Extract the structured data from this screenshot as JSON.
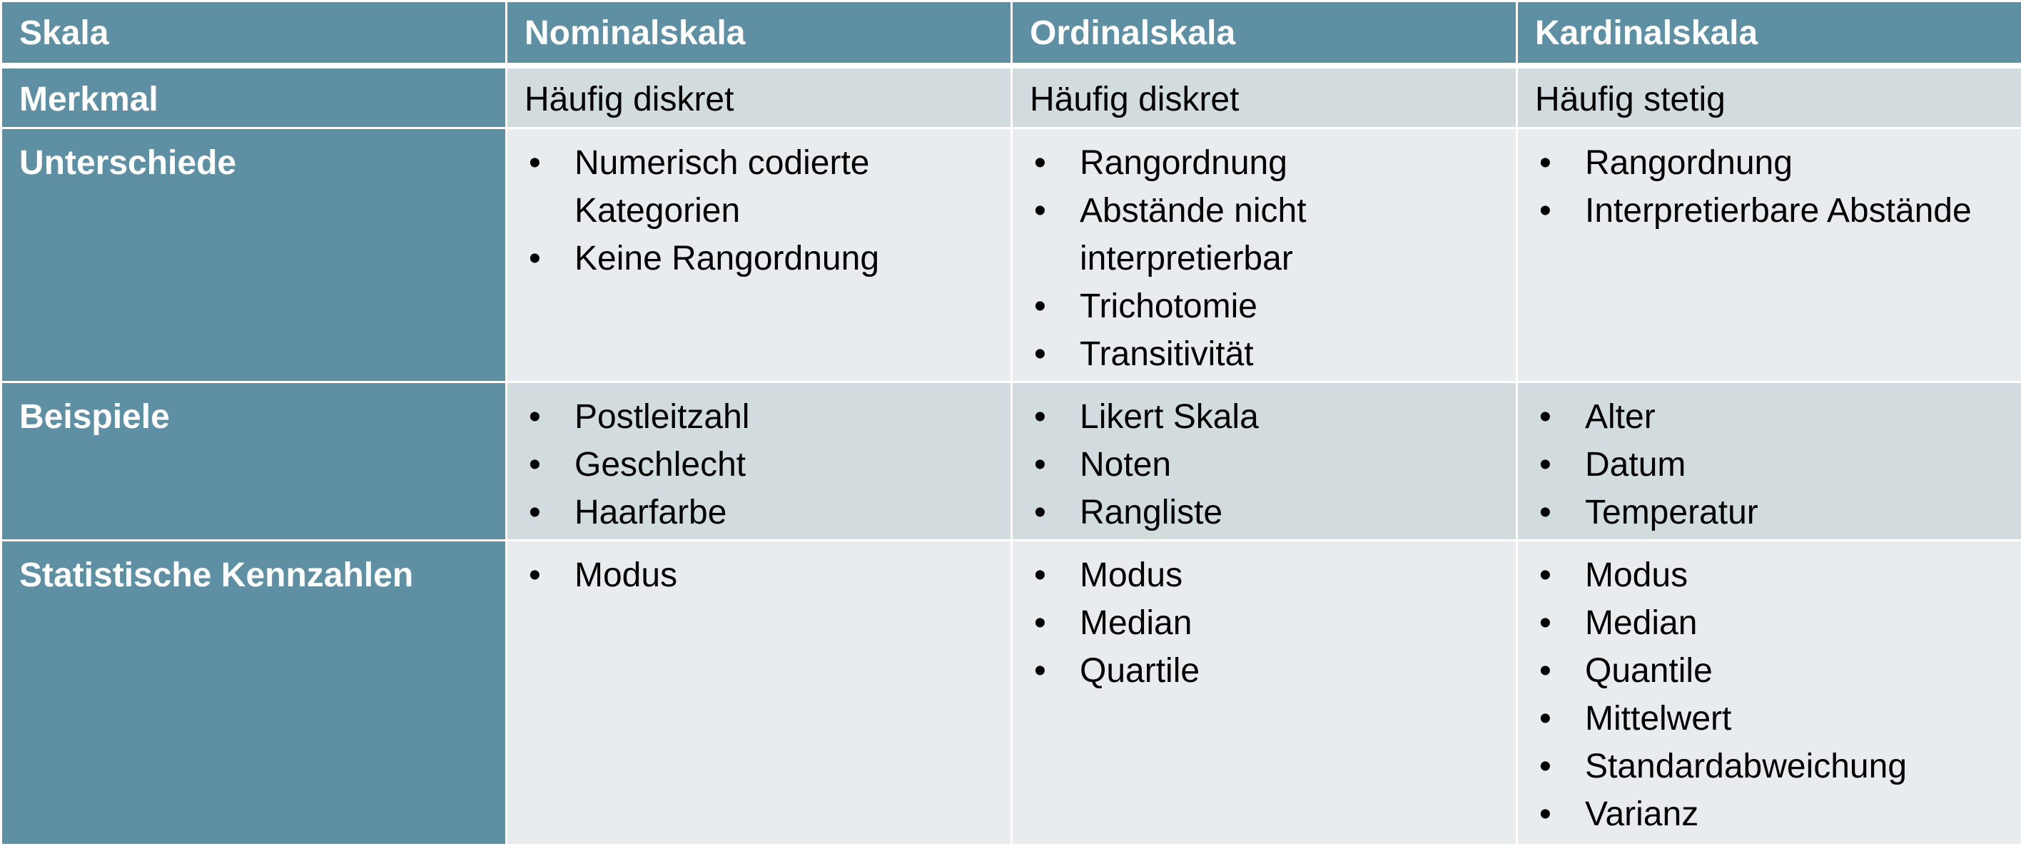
{
  "header": [
    "Skala",
    "Nominalskala",
    "Ordinalskala",
    "Kardinalskala"
  ],
  "rows": [
    {
      "label": "Merkmal",
      "cells": [
        "Häufig diskret",
        "Häufig diskret",
        "Häufig stetig"
      ]
    },
    {
      "label": "Unterschiede",
      "cells": [
        [
          "Numerisch codierte Kategorien",
          "Keine Rangordnung"
        ],
        [
          "Rangordnung",
          "Abstände nicht interpretierbar",
          "Trichotomie",
          "Transitivität"
        ],
        [
          "Rangordnung",
          "Interpretierbare Abstände"
        ]
      ]
    },
    {
      "label": "Beispiele",
      "cells": [
        [
          "Postleitzahl",
          "Geschlecht",
          "Haarfarbe"
        ],
        [
          "Likert Skala",
          "Noten",
          "Rangliste"
        ],
        [
          "Alter",
          "Datum",
          "Temperatur"
        ]
      ]
    },
    {
      "label": "Statistische Kennzahlen",
      "cells": [
        [
          "Modus"
        ],
        [
          "Modus",
          "Median",
          "Quartile"
        ],
        [
          "Modus",
          "Median",
          "Quantile",
          "Mittelwert",
          "Standardabweichung",
          "Varianz"
        ]
      ]
    }
  ],
  "colors": {
    "header": "#5e8fa3",
    "row_dark": "#d2dcdf",
    "row_light": "#e8ecee"
  }
}
